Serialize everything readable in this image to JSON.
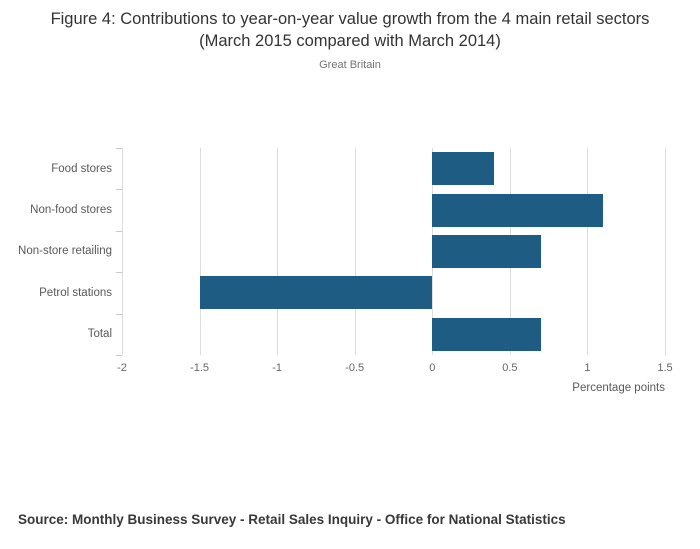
{
  "title": "Figure 4: Contributions to year-on-year value growth from the 4 main retail sectors (March 2015 compared with March 2014)",
  "subtitle": "Great Britain",
  "source": "Source: Monthly Business Survey - Retail Sales Inquiry - Office for National Statistics",
  "colors": {
    "bar": "#1e5c83",
    "gridline": "#dcdcdc"
  },
  "chart_data": {
    "type": "bar",
    "orientation": "horizontal",
    "categories": [
      "Food stores",
      "Non-food stores",
      "Non-store retailing",
      "Petrol stations",
      "Total"
    ],
    "values": [
      0.4,
      1.1,
      0.7,
      -1.5,
      0.7
    ],
    "title": "Contributions to year-on-year value growth from the 4 main retail sectors (March 2015 compared with March 2014)",
    "xlabel": "Percentage points",
    "ylabel": "",
    "xlim": [
      -2,
      1.5
    ],
    "xtick_labels": [
      "-2",
      "-1.5",
      "-1",
      "-0.5",
      "0",
      "0.5",
      "1",
      "1.5"
    ],
    "grid": true,
    "legend": "none"
  }
}
